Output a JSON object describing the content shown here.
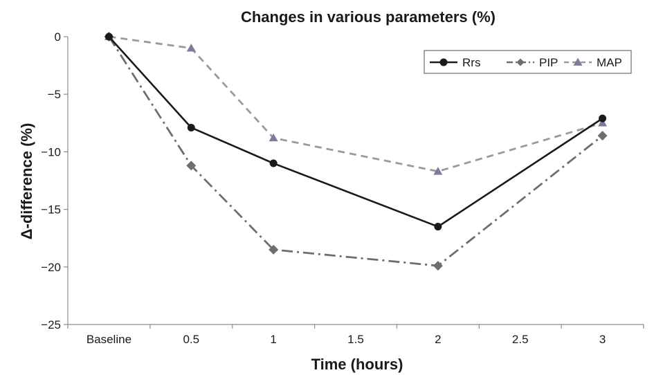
{
  "chart_data": {
    "type": "line",
    "title": "Changes in various parameters (%)",
    "xlabel": "Time (hours)",
    "ylabel": "Δ-difference (%)",
    "x_tick_labels": [
      "Baseline",
      "0.5",
      "1",
      "1.5",
      "2",
      "2.5",
      "3"
    ],
    "y_ticks": [
      0,
      -5,
      -10,
      -15,
      -20,
      -25
    ],
    "ylim": [
      -25,
      0
    ],
    "grid": false,
    "legend_position": "top-right",
    "series": [
      {
        "name": "Rrs",
        "x": [
          "Baseline",
          "0.5",
          "1",
          "2",
          "3"
        ],
        "values": [
          0,
          -7.9,
          -11.0,
          -16.5,
          -7.1
        ],
        "color": "#1a1a1a",
        "line_style": "solid",
        "marker": "circle"
      },
      {
        "name": "PIP",
        "x": [
          "Baseline",
          "0.5",
          "1",
          "2",
          "3"
        ],
        "values": [
          0,
          -11.2,
          -18.5,
          -19.9,
          -8.6
        ],
        "color": "#6e6e6e",
        "line_style": "dash-dot",
        "marker": "diamond"
      },
      {
        "name": "MAP",
        "x": [
          "Baseline",
          "0.5",
          "1",
          "2",
          "3"
        ],
        "values": [
          0,
          -1.0,
          -8.8,
          -11.7,
          -7.5
        ],
        "color": "#9a9a9a",
        "marker_color": "#7f7a9c",
        "line_style": "dashed",
        "marker": "triangle"
      }
    ]
  }
}
